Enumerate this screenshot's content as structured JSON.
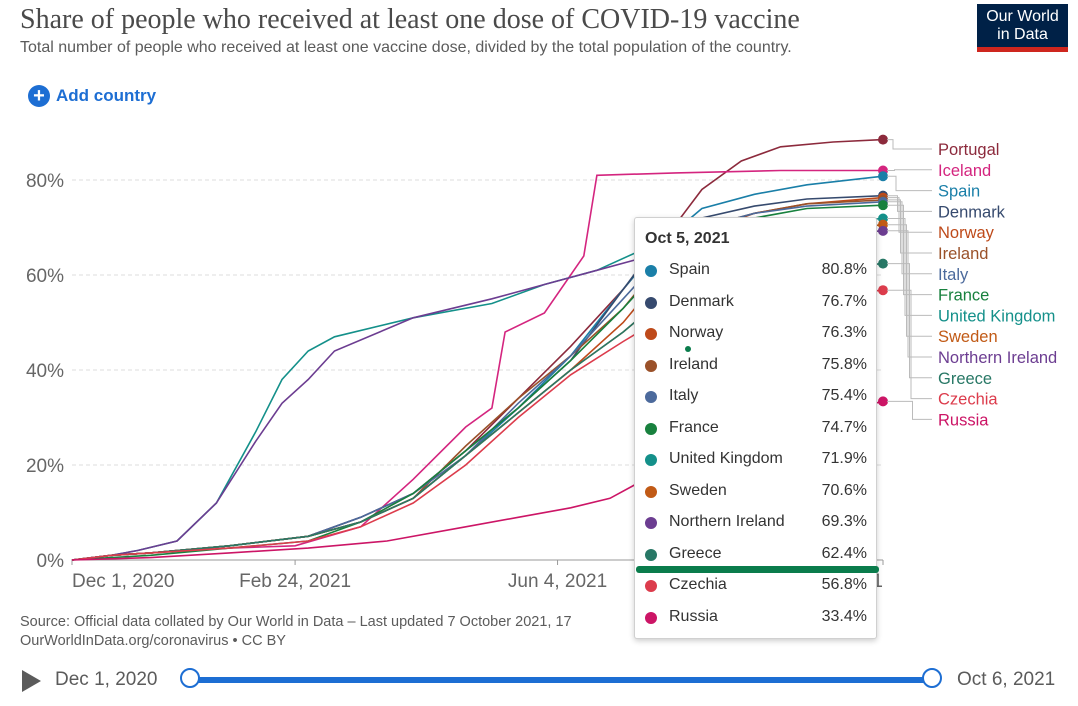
{
  "header": {
    "title": "Share of people who received at least one dose of COVID-19 vaccine",
    "subtitle": "Total number of people who received at least one vaccine dose, divided by the total population of the country.",
    "logo_line1": "Our World",
    "logo_line2": "in Data",
    "add_country": "Add country"
  },
  "colors": {
    "accent": "#1d6ed3",
    "logo_bg": "#002147",
    "logo_stripe": "#ce261e",
    "highlight": "#0a7c4c"
  },
  "chart_data": {
    "type": "line",
    "title": "Share of people who received at least one dose of COVID-19 vaccine",
    "ylabel": "",
    "xlabel": "",
    "ylim": [
      0,
      90
    ],
    "yticks": [
      {
        "v": 0,
        "label": "0%"
      },
      {
        "v": 20,
        "label": "20%"
      },
      {
        "v": 40,
        "label": "40%"
      },
      {
        "v": 60,
        "label": "60%"
      },
      {
        "v": 80,
        "label": "80%"
      }
    ],
    "xlim": [
      0,
      309
    ],
    "xticks": [
      {
        "v": 0,
        "label": "Dec 1, 2020"
      },
      {
        "v": 85,
        "label": "Feb 24, 2021"
      },
      {
        "v": 185,
        "label": "Jun 4, 2021"
      },
      {
        "v": 309,
        "label": "Oct 5, 2021"
      }
    ],
    "x_unit": "days since Dec 1, 2020",
    "series": [
      {
        "name": "Portugal",
        "color": "#8c2a3c",
        "last": 88.5,
        "points": [
          [
            0,
            0
          ],
          [
            15,
            1
          ],
          [
            30,
            1.5
          ],
          [
            60,
            3
          ],
          [
            90,
            5
          ],
          [
            110,
            9
          ],
          [
            130,
            14
          ],
          [
            150,
            23
          ],
          [
            170,
            34
          ],
          [
            190,
            45
          ],
          [
            210,
            57
          ],
          [
            225,
            67
          ],
          [
            240,
            78
          ],
          [
            255,
            84
          ],
          [
            270,
            87
          ],
          [
            290,
            88
          ],
          [
            309,
            88.5
          ]
        ]
      },
      {
        "name": "Iceland",
        "color": "#d4257f",
        "last": 82.0,
        "points": [
          [
            0,
            0
          ],
          [
            15,
            1
          ],
          [
            30,
            1.5
          ],
          [
            60,
            2.5
          ],
          [
            85,
            3
          ],
          [
            110,
            7
          ],
          [
            130,
            17
          ],
          [
            150,
            28
          ],
          [
            160,
            32
          ],
          [
            165,
            48
          ],
          [
            180,
            52
          ],
          [
            195,
            64
          ],
          [
            200,
            81
          ],
          [
            230,
            81.5
          ],
          [
            270,
            82
          ],
          [
            309,
            82
          ]
        ]
      },
      {
        "name": "Spain",
        "color": "#1a7fa8",
        "last": 80.8,
        "points": [
          [
            0,
            0
          ],
          [
            15,
            1
          ],
          [
            30,
            1.5
          ],
          [
            60,
            3
          ],
          [
            90,
            5
          ],
          [
            110,
            8
          ],
          [
            130,
            13
          ],
          [
            150,
            22
          ],
          [
            170,
            32
          ],
          [
            190,
            43
          ],
          [
            210,
            57
          ],
          [
            225,
            67
          ],
          [
            240,
            74
          ],
          [
            260,
            77
          ],
          [
            280,
            79
          ],
          [
            309,
            80.8
          ]
        ]
      },
      {
        "name": "Denmark",
        "color": "#364a6e",
        "last": 76.7,
        "points": [
          [
            0,
            0
          ],
          [
            15,
            1
          ],
          [
            30,
            1.5
          ],
          [
            60,
            3
          ],
          [
            90,
            5
          ],
          [
            110,
            9
          ],
          [
            130,
            14
          ],
          [
            150,
            23
          ],
          [
            170,
            32
          ],
          [
            190,
            42
          ],
          [
            210,
            57
          ],
          [
            225,
            68
          ],
          [
            240,
            72
          ],
          [
            260,
            74.5
          ],
          [
            280,
            76
          ],
          [
            309,
            76.7
          ]
        ]
      },
      {
        "name": "Norway",
        "color": "#be4a1a",
        "last": 76.3,
        "points": [
          [
            0,
            0
          ],
          [
            15,
            1
          ],
          [
            30,
            1.5
          ],
          [
            60,
            3
          ],
          [
            90,
            5
          ],
          [
            110,
            8
          ],
          [
            130,
            13
          ],
          [
            150,
            22
          ],
          [
            170,
            31
          ],
          [
            190,
            40
          ],
          [
            210,
            50
          ],
          [
            225,
            60
          ],
          [
            240,
            69
          ],
          [
            260,
            73
          ],
          [
            280,
            75
          ],
          [
            309,
            76.3
          ]
        ]
      },
      {
        "name": "Ireland",
        "color": "#9a5129",
        "last": 75.8,
        "points": [
          [
            0,
            0
          ],
          [
            15,
            1
          ],
          [
            30,
            1.5
          ],
          [
            60,
            3
          ],
          [
            90,
            5
          ],
          [
            110,
            8
          ],
          [
            130,
            13
          ],
          [
            150,
            24
          ],
          [
            170,
            34
          ],
          [
            190,
            43
          ],
          [
            210,
            53
          ],
          [
            225,
            63
          ],
          [
            240,
            70
          ],
          [
            260,
            73
          ],
          [
            280,
            75
          ],
          [
            309,
            75.8
          ]
        ]
      },
      {
        "name": "Italy",
        "color": "#4c6a9c",
        "last": 75.4,
        "points": [
          [
            0,
            0
          ],
          [
            15,
            1
          ],
          [
            30,
            1.5
          ],
          [
            60,
            3
          ],
          [
            90,
            5
          ],
          [
            110,
            9
          ],
          [
            130,
            14
          ],
          [
            150,
            22
          ],
          [
            170,
            33
          ],
          [
            190,
            43
          ],
          [
            210,
            55
          ],
          [
            225,
            64
          ],
          [
            240,
            70
          ],
          [
            260,
            73
          ],
          [
            280,
            74.5
          ],
          [
            309,
            75.4
          ]
        ]
      },
      {
        "name": "France",
        "color": "#18813e",
        "last": 74.7,
        "points": [
          [
            0,
            0
          ],
          [
            15,
            0.5
          ],
          [
            30,
            1
          ],
          [
            60,
            2.5
          ],
          [
            90,
            4
          ],
          [
            110,
            8
          ],
          [
            130,
            14
          ],
          [
            150,
            23
          ],
          [
            170,
            32
          ],
          [
            190,
            42
          ],
          [
            210,
            53
          ],
          [
            225,
            62
          ],
          [
            240,
            68
          ],
          [
            260,
            72
          ],
          [
            280,
            74
          ],
          [
            309,
            74.7
          ]
        ]
      },
      {
        "name": "United Kingdom",
        "color": "#14908a",
        "last": 71.9,
        "points": [
          [
            0,
            0
          ],
          [
            15,
            1
          ],
          [
            25,
            2
          ],
          [
            40,
            4
          ],
          [
            55,
            12
          ],
          [
            70,
            27
          ],
          [
            80,
            38
          ],
          [
            90,
            44
          ],
          [
            100,
            47
          ],
          [
            130,
            51
          ],
          [
            160,
            54
          ],
          [
            180,
            58
          ],
          [
            200,
            61
          ],
          [
            220,
            66
          ],
          [
            245,
            69
          ],
          [
            270,
            70.5
          ],
          [
            309,
            71.9
          ]
        ]
      },
      {
        "name": "Sweden",
        "color": "#c15a16",
        "last": 70.6,
        "points": [
          [
            0,
            0
          ],
          [
            15,
            1
          ],
          [
            30,
            1.5
          ],
          [
            60,
            3
          ],
          [
            90,
            5
          ],
          [
            110,
            8
          ],
          [
            130,
            13
          ],
          [
            150,
            22
          ],
          [
            170,
            31
          ],
          [
            190,
            40
          ],
          [
            210,
            48
          ],
          [
            225,
            55
          ],
          [
            240,
            63
          ],
          [
            260,
            67
          ],
          [
            280,
            69
          ],
          [
            309,
            70.6
          ]
        ]
      },
      {
        "name": "Northern Ireland",
        "color": "#6c3d91",
        "last": 69.3,
        "points": [
          [
            0,
            0
          ],
          [
            15,
            1
          ],
          [
            25,
            2
          ],
          [
            40,
            4
          ],
          [
            55,
            12
          ],
          [
            70,
            25
          ],
          [
            80,
            33
          ],
          [
            90,
            38
          ],
          [
            100,
            44
          ],
          [
            130,
            51
          ],
          [
            160,
            55
          ],
          [
            180,
            58
          ],
          [
            200,
            61
          ],
          [
            220,
            64
          ],
          [
            245,
            66
          ],
          [
            270,
            68
          ],
          [
            309,
            69.3
          ]
        ]
      },
      {
        "name": "Greece",
        "color": "#287866",
        "last": 62.4,
        "points": [
          [
            0,
            0
          ],
          [
            15,
            1
          ],
          [
            30,
            1.5
          ],
          [
            60,
            3
          ],
          [
            90,
            5
          ],
          [
            110,
            8
          ],
          [
            130,
            13
          ],
          [
            150,
            22
          ],
          [
            170,
            31
          ],
          [
            190,
            40
          ],
          [
            210,
            48
          ],
          [
            225,
            55
          ],
          [
            240,
            57
          ],
          [
            260,
            59
          ],
          [
            280,
            61
          ],
          [
            309,
            62.4
          ]
        ]
      },
      {
        "name": "Czechia",
        "color": "#dc3c4c",
        "last": 56.8,
        "points": [
          [
            0,
            0
          ],
          [
            15,
            1
          ],
          [
            30,
            1.5
          ],
          [
            60,
            2.5
          ],
          [
            90,
            4
          ],
          [
            110,
            7
          ],
          [
            130,
            12
          ],
          [
            150,
            20
          ],
          [
            170,
            30
          ],
          [
            190,
            39
          ],
          [
            210,
            46
          ],
          [
            225,
            51
          ],
          [
            240,
            53
          ],
          [
            260,
            54.5
          ],
          [
            280,
            55.5
          ],
          [
            309,
            56.8
          ]
        ]
      },
      {
        "name": "Russia",
        "color": "#cc1566",
        "last": 33.4,
        "points": [
          [
            0,
            0
          ],
          [
            30,
            0.5
          ],
          [
            60,
            1.5
          ],
          [
            90,
            2.5
          ],
          [
            120,
            4
          ],
          [
            150,
            7
          ],
          [
            170,
            9
          ],
          [
            190,
            11
          ],
          [
            205,
            13
          ],
          [
            215,
            16
          ],
          [
            225,
            20
          ],
          [
            240,
            24
          ],
          [
            255,
            26
          ],
          [
            270,
            28
          ],
          [
            290,
            31
          ],
          [
            309,
            33.4
          ]
        ]
      }
    ],
    "labels": [
      "Portugal",
      "Iceland",
      "Spain",
      "Denmark",
      "Norway",
      "Ireland",
      "Italy",
      "France",
      "United Kingdom",
      "Sweden",
      "Northern Ireland",
      "Greece",
      "Czechia",
      "Russia"
    ]
  },
  "tooltip": {
    "date": "Oct 5, 2021",
    "rows": [
      {
        "name": "Spain",
        "value": "80.8%",
        "color": "#1a7fa8"
      },
      {
        "name": "Denmark",
        "value": "76.7%",
        "color": "#364a6e"
      },
      {
        "name": "Norway",
        "value": "76.3%",
        "color": "#be4a1a"
      },
      {
        "name": "Ireland",
        "value": "75.8%",
        "color": "#9a5129"
      },
      {
        "name": "Italy",
        "value": "75.4%",
        "color": "#4c6a9c"
      },
      {
        "name": "France",
        "value": "74.7%",
        "color": "#18813e"
      },
      {
        "name": "United Kingdom",
        "value": "71.9%",
        "color": "#14908a"
      },
      {
        "name": "Sweden",
        "value": "70.6%",
        "color": "#c15a16"
      },
      {
        "name": "Northern Ireland",
        "value": "69.3%",
        "color": "#6c3d91"
      },
      {
        "name": "Greece",
        "value": "62.4%",
        "color": "#287866"
      },
      {
        "name": "Czechia",
        "value": "56.8%",
        "color": "#dc3c4c"
      },
      {
        "name": "Russia",
        "value": "33.4%",
        "color": "#cc1566"
      }
    ]
  },
  "source": {
    "line1": "Source: Official data collated by Our World in Data – Last updated 7 October 2021, 17",
    "line2": "OurWorldInData.org/coronavirus • CC BY"
  },
  "timeline": {
    "start": "Dec 1, 2020",
    "end": "Oct 6, 2021",
    "position_start": 0,
    "position_end": 1
  }
}
